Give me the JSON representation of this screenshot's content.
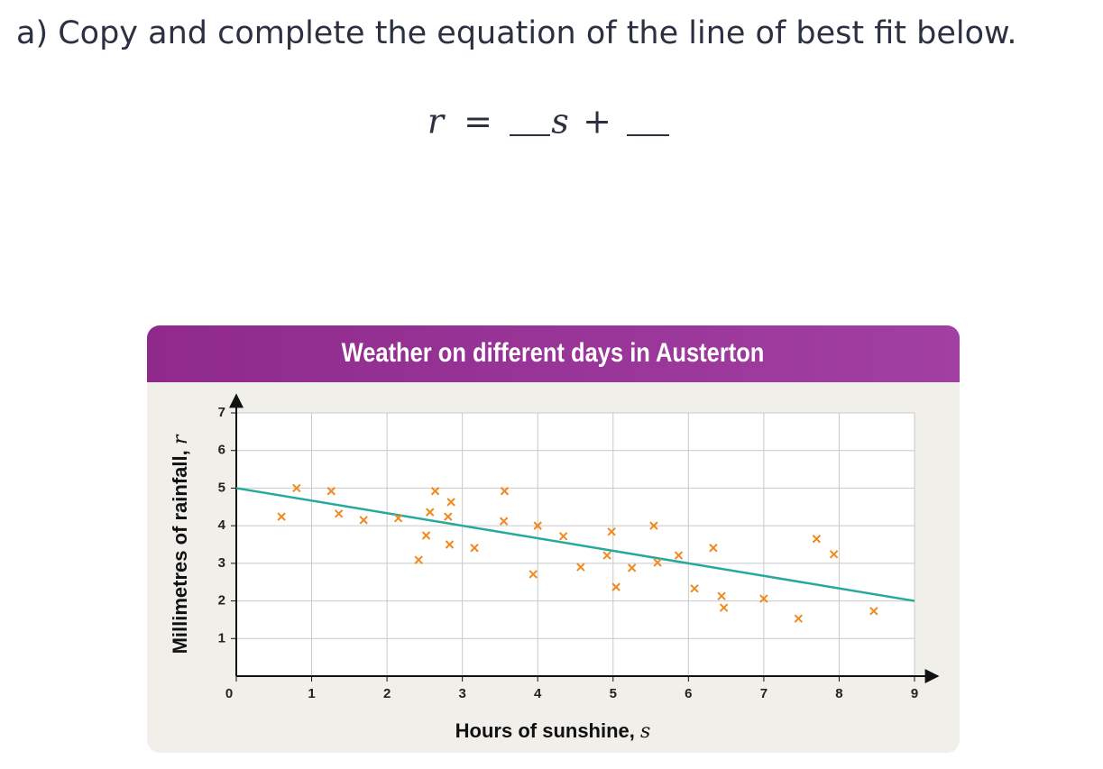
{
  "question": "a) Copy and complete the equation of the line of best fit below.",
  "equation": {
    "lhs": "r",
    "equals": "=",
    "variable": "s",
    "plus": "+"
  },
  "chart_data": {
    "type": "scatter",
    "title": "Weather on different days in Austerton",
    "x_label": "Hours of sunshine,",
    "x_variable": "s",
    "y_label": "Millimetres of rainfall,",
    "y_variable": "r",
    "x": [
      0.6,
      0.8,
      1.26,
      1.36,
      1.69,
      2.15,
      2.42,
      2.52,
      2.57,
      2.64,
      2.81,
      2.85,
      2.83,
      3.16,
      3.56,
      3.55,
      3.94,
      4.0,
      4.34,
      4.57,
      4.92,
      4.98,
      5.04,
      5.25,
      5.54,
      5.59,
      5.87,
      6.08,
      6.33,
      6.44,
      6.47,
      7.0,
      7.46,
      7.7,
      7.93,
      8.46
    ],
    "values": [
      4.24,
      5.0,
      4.92,
      4.32,
      4.15,
      4.2,
      3.09,
      3.74,
      4.36,
      4.92,
      4.24,
      4.63,
      3.5,
      3.41,
      4.92,
      4.12,
      2.71,
      4.0,
      3.72,
      2.9,
      3.21,
      3.84,
      2.37,
      2.88,
      4.0,
      3.02,
      3.21,
      2.33,
      3.41,
      2.13,
      1.82,
      2.06,
      1.53,
      3.65,
      3.24,
      1.73
    ],
    "color": "#f0891f",
    "fit_line": {
      "x": [
        0,
        9
      ],
      "values": [
        5,
        2
      ],
      "color": "#26a89a"
    },
    "xlim": [
      0,
      9
    ],
    "ylim": [
      0,
      7
    ],
    "xticks": [
      0,
      1,
      2,
      3,
      4,
      5,
      6,
      7,
      8,
      9
    ],
    "yticks": [
      1,
      2,
      3,
      4,
      5,
      6,
      7
    ],
    "grid": true
  }
}
